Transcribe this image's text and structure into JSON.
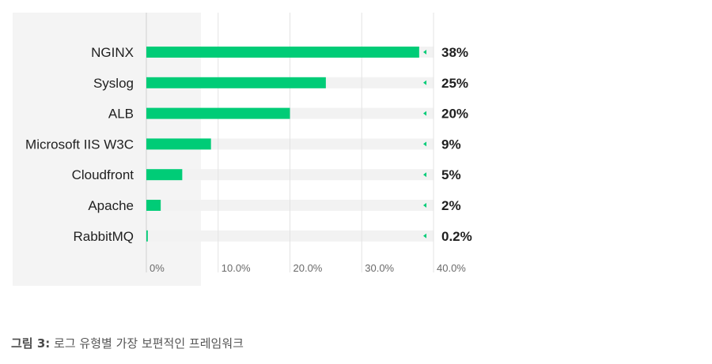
{
  "chart_data": {
    "type": "bar",
    "orientation": "horizontal",
    "categories": [
      "NGINX",
      "Syslog",
      "ALB",
      "Microsoft IIS W3C",
      "Cloudfront",
      "Apache",
      "RabbitMQ"
    ],
    "values": [
      38,
      25,
      20,
      9,
      5,
      2,
      0.2
    ],
    "value_labels": [
      "38%",
      "25%",
      "20%",
      "9%",
      "5%",
      "2%",
      "0.2%"
    ],
    "xlim": [
      0,
      40
    ],
    "xticks": [
      0,
      10,
      20,
      30,
      40
    ],
    "xtick_labels": [
      "0%",
      "10.0%",
      "20.0%",
      "30.0%",
      "40.0%"
    ],
    "grid": true,
    "bar_color": "#00cc77",
    "track_color": "#f2f2f2",
    "label_panel_color": "#f4f4f4",
    "marker_color": "#00cc77"
  },
  "caption": {
    "figure_number": "그림 3:",
    "text": "로그 유형별 가장 보편적인 프레임워크"
  }
}
